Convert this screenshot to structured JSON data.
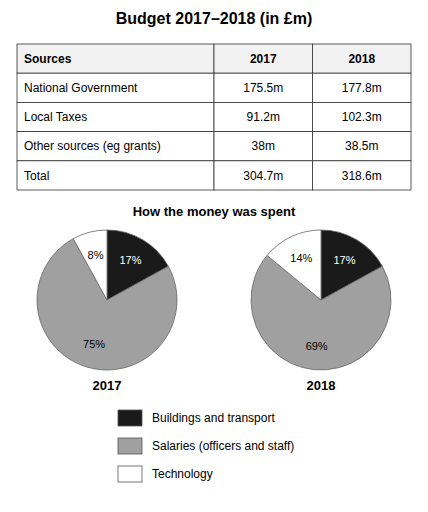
{
  "chart_data": [
    {
      "type": "table",
      "title": "Budget 2017–2018 (in £m)",
      "columns": [
        "Sources",
        "2017",
        "2018"
      ],
      "rows": [
        [
          "National Government",
          "175.5m",
          "177.8m"
        ],
        [
          "Local Taxes",
          "91.2m",
          "102.3m"
        ],
        [
          "Other sources (eg grants)",
          "38m",
          "38.5m"
        ],
        [
          "Total",
          "304.7m",
          "318.6m"
        ]
      ]
    },
    {
      "type": "pie",
      "title": "How the money was spent",
      "categories": [
        "Buildings and transport",
        "Salaries (officers and staff)",
        "Technology"
      ],
      "colors": [
        "#1a1a1a",
        "#a0a0a0",
        "#ffffff"
      ],
      "series": [
        {
          "name": "2017",
          "values": [
            17,
            75,
            8
          ],
          "value_labels": [
            "17%",
            "75%",
            "8%"
          ]
        },
        {
          "name": "2018",
          "values": [
            17,
            69,
            14
          ],
          "value_labels": [
            "17%",
            "69%",
            "14%"
          ]
        }
      ],
      "data_labels": true,
      "legend": "bottom"
    }
  ]
}
